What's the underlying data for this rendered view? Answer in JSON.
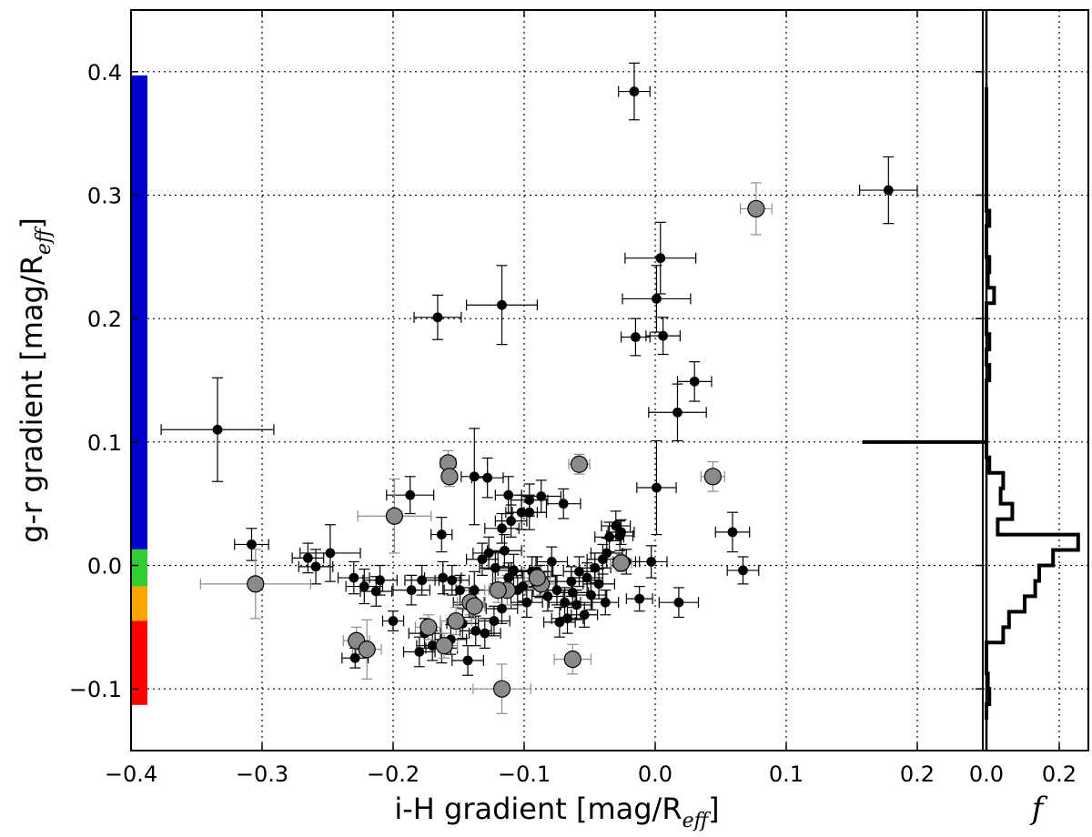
{
  "chart_data": [
    {
      "type": "scatter",
      "name": "main-scatter",
      "xlabel": "i-H gradient [mag/R",
      "xlabel_sub": "eff",
      "xlabel_end": "]",
      "ylabel": "g-r gradient [mag/R",
      "ylabel_sub": "eff",
      "ylabel_end": "]",
      "xlim": [
        -0.4,
        0.25
      ],
      "ylim": [
        -0.15,
        0.45
      ],
      "xticks": [
        -0.4,
        -0.3,
        -0.2,
        -0.1,
        0.0,
        0.1
      ],
      "xtick_labels": [
        "−0.4",
        "−0.3",
        "−0.2",
        "−0.1",
        "0.0",
        "0.1"
      ],
      "extra_xtick": 0.2,
      "extra_xtick_label": "0.2",
      "yticks": [
        -0.1,
        0.0,
        0.1,
        0.2,
        0.3,
        0.4
      ],
      "ytick_labels": [
        "−0.1",
        "0.0",
        "0.1",
        "0.2",
        "0.3",
        "0.4"
      ],
      "grid": true,
      "color_bar": [
        {
          "from": 0.013,
          "to": 0.397,
          "color": "#0000cc"
        },
        {
          "from": -0.017,
          "to": 0.013,
          "color": "#33cc33"
        },
        {
          "from": -0.045,
          "to": -0.017,
          "color": "#ffa500"
        },
        {
          "from": -0.113,
          "to": -0.045,
          "color": "#ff0000"
        }
      ],
      "series": [
        {
          "name": "black-points",
          "marker": "small-black-circle",
          "points": [
            [
              -0.016,
              0.384,
              0.012,
              0.023
            ],
            [
              0.178,
              0.304,
              0.022,
              0.027
            ],
            [
              0.004,
              0.249,
              0.027,
              0.029
            ],
            [
              0.001,
              0.216,
              0.026,
              0.027
            ],
            [
              -0.117,
              0.211,
              0.027,
              0.032
            ],
            [
              -0.166,
              0.201,
              0.018,
              0.018
            ],
            [
              -0.015,
              0.185,
              0.011,
              0.015
            ],
            [
              0.006,
              0.186,
              0.013,
              0.015
            ],
            [
              0.03,
              0.149,
              0.013,
              0.016
            ],
            [
              0.017,
              0.124,
              0.022,
              0.023
            ],
            [
              -0.334,
              0.11,
              0.043,
              0.042
            ],
            [
              -0.187,
              0.057,
              0.018,
              0.015
            ],
            [
              -0.138,
              0.072,
              0.01,
              0.039
            ],
            [
              -0.128,
              0.071,
              0.012,
              0.016
            ],
            [
              -0.112,
              0.057,
              0.01,
              0.015
            ],
            [
              -0.096,
              0.053,
              0.014,
              0.013
            ],
            [
              -0.087,
              0.056,
              0.015,
              0.013
            ],
            [
              -0.07,
              0.05,
              0.013,
              0.012
            ],
            [
              0.001,
              0.063,
              0.015,
              0.038
            ],
            [
              -0.102,
              0.043,
              0.012,
              0.014
            ],
            [
              -0.096,
              0.043,
              0.013,
              0.014
            ],
            [
              -0.163,
              0.025,
              0.008,
              0.014
            ],
            [
              -0.117,
              0.03,
              0.013,
              0.012
            ],
            [
              -0.11,
              0.036,
              0.012,
              0.013
            ],
            [
              -0.308,
              0.017,
              0.013,
              0.013
            ],
            [
              -0.248,
              0.01,
              0.023,
              0.023
            ],
            [
              -0.265,
              0.006,
              0.012,
              0.012
            ],
            [
              -0.259,
              -0.001,
              0.013,
              0.014
            ],
            [
              -0.23,
              -0.01,
              0.012,
              0.013
            ],
            [
              -0.222,
              -0.017,
              0.014,
              0.014
            ],
            [
              -0.21,
              -0.012,
              0.013,
              0.012
            ],
            [
              -0.213,
              -0.021,
              0.012,
              0.012
            ],
            [
              -0.186,
              -0.02,
              0.014,
              0.012
            ],
            [
              -0.178,
              -0.012,
              0.013,
              0.012
            ],
            [
              -0.162,
              -0.01,
              0.014,
              0.013
            ],
            [
              -0.155,
              -0.012,
              0.013,
              0.012
            ],
            [
              -0.149,
              -0.02,
              0.012,
              0.012
            ],
            [
              -0.138,
              -0.02,
              0.014,
              0.015
            ],
            [
              -0.132,
              0.005,
              0.012,
              0.013
            ],
            [
              -0.127,
              0.01,
              0.012,
              0.013
            ],
            [
              -0.122,
              -0.002,
              0.012,
              0.013
            ],
            [
              -0.115,
              0.012,
              0.013,
              0.013
            ],
            [
              -0.108,
              -0.004,
              0.012,
              0.013
            ],
            [
              -0.101,
              -0.017,
              0.013,
              0.012
            ],
            [
              -0.094,
              -0.005,
              0.012,
              0.012
            ],
            [
              -0.088,
              -0.013,
              0.012,
              0.013
            ],
            [
              -0.082,
              -0.025,
              0.012,
              0.012
            ],
            [
              -0.075,
              -0.02,
              0.012,
              0.012
            ],
            [
              -0.069,
              -0.03,
              0.012,
              0.012
            ],
            [
              -0.063,
              -0.022,
              0.012,
              0.012
            ],
            [
              -0.058,
              -0.005,
              0.012,
              0.012
            ],
            [
              -0.052,
              -0.01,
              0.012,
              0.012
            ],
            [
              -0.046,
              -0.002,
              0.012,
              0.012
            ],
            [
              -0.04,
              0.005,
              0.012,
              0.012
            ],
            [
              -0.035,
              0.023,
              0.011,
              0.012
            ],
            [
              -0.03,
              0.032,
              0.011,
              0.012
            ],
            [
              -0.027,
              0.024,
              0.01,
              0.012
            ],
            [
              -0.037,
              0.01,
              0.012,
              0.012
            ],
            [
              -0.043,
              -0.015,
              0.012,
              0.012
            ],
            [
              -0.06,
              -0.032,
              0.012,
              0.012
            ],
            [
              -0.067,
              -0.043,
              0.012,
              0.012
            ],
            [
              -0.073,
              -0.046,
              0.012,
              0.012
            ],
            [
              -0.098,
              -0.03,
              0.012,
              0.012
            ],
            [
              -0.105,
              -0.02,
              0.012,
              0.012
            ],
            [
              -0.117,
              -0.035,
              0.012,
              0.012
            ],
            [
              -0.123,
              -0.045,
              0.012,
              0.012
            ],
            [
              -0.13,
              -0.055,
              0.012,
              0.012
            ],
            [
              -0.137,
              -0.053,
              0.012,
              0.012
            ],
            [
              -0.143,
              -0.077,
              0.012,
              0.012
            ],
            [
              -0.147,
              -0.047,
              0.012,
              0.012
            ],
            [
              -0.156,
              -0.06,
              0.012,
              0.012
            ],
            [
              -0.163,
              -0.067,
              0.012,
              0.012
            ],
            [
              -0.17,
              -0.065,
              0.012,
              0.012
            ],
            [
              -0.176,
              -0.055,
              0.012,
              0.012
            ],
            [
              -0.18,
              -0.07,
              0.012,
              0.012
            ],
            [
              -0.2,
              -0.045,
              0.008,
              0.008
            ],
            [
              -0.229,
              -0.075,
              0.01,
              0.008
            ],
            [
              0.018,
              -0.03,
              0.015,
              0.012
            ],
            [
              0.059,
              0.027,
              0.013,
              0.016
            ],
            [
              0.067,
              -0.004,
              0.012,
              0.011
            ],
            [
              -0.003,
              0.003,
              0.012,
              0.013
            ],
            [
              -0.012,
              -0.027,
              0.01,
              0.01
            ],
            [
              -0.142,
              -0.03,
              0.012,
              0.012
            ],
            [
              -0.112,
              -0.01,
              0.012,
              0.012
            ],
            [
              -0.09,
              -0.005,
              0.012,
              0.012
            ],
            [
              -0.079,
              0.003,
              0.012,
              0.012
            ],
            [
              -0.064,
              -0.013,
              0.012,
              0.012
            ],
            [
              -0.049,
              -0.024,
              0.012,
              0.012
            ],
            [
              -0.026,
              0.027,
              0.01,
              0.01
            ],
            [
              -0.022,
              0.003,
              0.01,
              0.01
            ],
            [
              -0.038,
              -0.03,
              0.01,
              0.01
            ],
            [
              -0.054,
              -0.04,
              0.01,
              0.01
            ]
          ]
        },
        {
          "name": "grey-points",
          "marker": "large-grey-circle",
          "points": [
            [
              0.077,
              0.289,
              0.012,
              0.021
            ],
            [
              -0.058,
              0.082,
              0.008,
              0.008
            ],
            [
              -0.158,
              0.083,
              0.006,
              0.01
            ],
            [
              -0.157,
              0.072,
              0.005,
              0.008
            ],
            [
              0.044,
              0.072,
              0.009,
              0.012
            ],
            [
              -0.199,
              0.04,
              0.028,
              0.03
            ],
            [
              -0.305,
              -0.015,
              0.042,
              0.028
            ],
            [
              -0.026,
              0.002,
              0.008,
              0.007
            ],
            [
              -0.087,
              -0.015,
              0.01,
              0.009
            ],
            [
              -0.09,
              -0.01,
              0.01,
              0.009
            ],
            [
              -0.113,
              -0.02,
              0.014,
              0.012
            ],
            [
              -0.12,
              -0.02,
              0.01,
              0.01
            ],
            [
              -0.141,
              -0.03,
              0.01,
              0.01
            ],
            [
              -0.138,
              -0.033,
              0.008,
              0.01
            ],
            [
              -0.152,
              -0.045,
              0.012,
              0.011
            ],
            [
              -0.173,
              -0.05,
              0.01,
              0.01
            ],
            [
              -0.161,
              -0.065,
              0.01,
              0.01
            ],
            [
              -0.228,
              -0.061,
              0.01,
              0.011
            ],
            [
              -0.22,
              -0.068,
              0.011,
              0.024
            ],
            [
              -0.063,
              -0.076,
              0.014,
              0.012
            ],
            [
              -0.117,
              -0.1,
              0.022,
              0.02
            ]
          ]
        }
      ]
    },
    {
      "type": "histogram",
      "name": "side-histogram",
      "xlabel": "f",
      "xlim": [
        -0.01,
        0.28
      ],
      "xticks": [
        0.0,
        0.2
      ],
      "xtick_labels": [
        "0.0",
        "0.2"
      ],
      "orientation": "horizontal",
      "bin_width": 0.0125,
      "bins_from": -0.125,
      "bins_to": 0.3875,
      "counts": [
        0.0,
        0.008,
        0.004,
        0.0,
        0.0,
        0.046,
        0.062,
        0.105,
        0.134,
        0.145,
        0.183,
        0.252,
        0.031,
        0.071,
        0.039,
        0.046,
        0.008,
        0.0,
        0.0,
        0.0,
        0.0,
        0.0,
        0.008,
        0.0,
        0.008,
        0.0,
        0.0,
        0.021,
        0.004,
        0.008,
        0.0,
        0.0,
        0.008,
        0.0,
        0.0,
        0.0,
        0.0,
        0.0,
        0.0,
        0.0,
        0.0
      ]
    }
  ]
}
